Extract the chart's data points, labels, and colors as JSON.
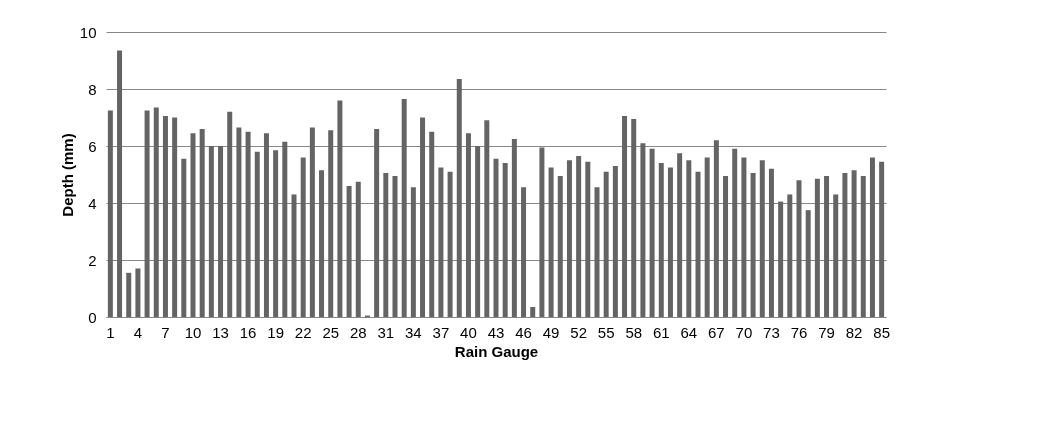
{
  "chart_data": {
    "type": "bar",
    "xlabel": "Rain Gauge",
    "ylabel": "Depth (mm)",
    "categories": [
      "1",
      null,
      null,
      "4",
      null,
      null,
      "7",
      null,
      null,
      "10",
      null,
      null,
      "13",
      null,
      null,
      "16",
      null,
      null,
      "19",
      null,
      null,
      "22",
      null,
      null,
      "25",
      null,
      null,
      "28",
      null,
      null,
      "31",
      null,
      null,
      "34",
      null,
      null,
      "37",
      null,
      null,
      "40",
      null,
      null,
      "43",
      null,
      null,
      "46",
      null,
      null,
      "49",
      null,
      null,
      "52",
      null,
      null,
      "55",
      null,
      null,
      "58",
      null,
      null,
      "61",
      null,
      null,
      "64",
      null,
      null,
      "67",
      null,
      null,
      "70",
      null,
      null,
      "73",
      null,
      null,
      "76",
      null,
      null,
      "79",
      null,
      null,
      "82",
      null,
      null,
      "85"
    ],
    "values": [
      7.25,
      9.35,
      1.55,
      1.7,
      7.25,
      7.35,
      7.05,
      7.0,
      5.55,
      6.45,
      6.6,
      6.0,
      6.0,
      7.2,
      6.65,
      6.5,
      5.8,
      6.45,
      5.85,
      6.15,
      4.3,
      5.6,
      6.65,
      5.15,
      6.55,
      7.6,
      4.6,
      4.75,
      0.05,
      6.6,
      5.05,
      4.95,
      7.65,
      4.55,
      7.0,
      6.5,
      5.25,
      5.1,
      8.35,
      6.45,
      6.0,
      6.9,
      5.55,
      5.4,
      6.25,
      4.55,
      0.35,
      5.95,
      5.25,
      4.95,
      5.5,
      5.65,
      5.45,
      4.55,
      5.1,
      5.3,
      7.05,
      6.95,
      6.1,
      5.9,
      5.4,
      5.25,
      5.75,
      5.5,
      5.1,
      5.6,
      6.2,
      4.95,
      5.9,
      5.6,
      5.05,
      5.5,
      5.2,
      4.05,
      4.3,
      4.8,
      3.75,
      4.85,
      4.95,
      4.3,
      5.05,
      5.15,
      4.95,
      5.6,
      5.45
    ],
    "color": "#646464",
    "ylim": [
      0,
      10
    ],
    "yticks": [
      0,
      2,
      4,
      6,
      8,
      10
    ],
    "grid": "y"
  }
}
